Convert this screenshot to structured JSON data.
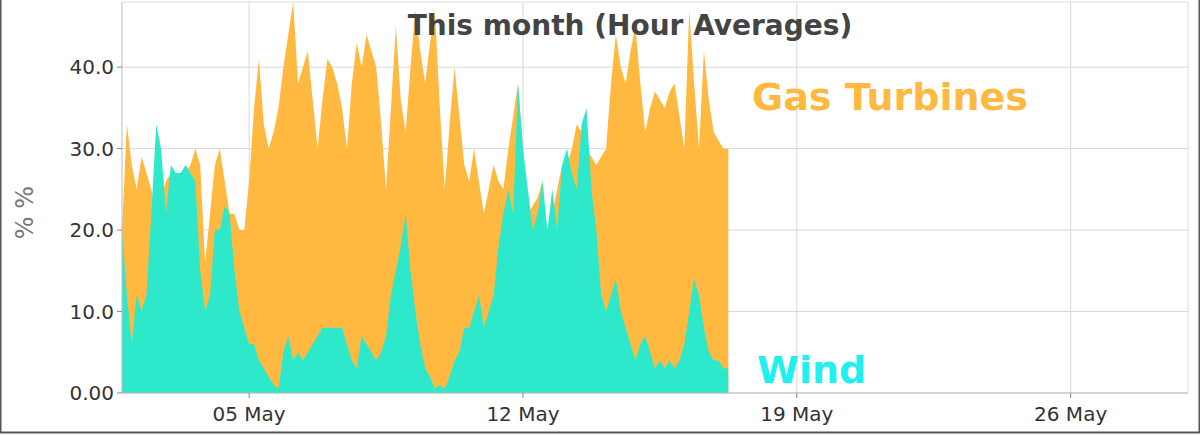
{
  "chart_data": {
    "type": "area",
    "title": "This month (Hour Averages)",
    "y_label": "% %",
    "stacked": false,
    "grid": true,
    "x": [
      1.75,
      1.875,
      2,
      2.125,
      2.25,
      2.375,
      2.5,
      2.625,
      2.75,
      2.875,
      3,
      3.125,
      3.25,
      3.375,
      3.5,
      3.625,
      3.75,
      3.875,
      4,
      4.125,
      4.25,
      4.375,
      4.5,
      4.625,
      4.75,
      4.875,
      5,
      5.125,
      5.25,
      5.375,
      5.5,
      5.625,
      5.75,
      5.875,
      6,
      6.125,
      6.25,
      6.375,
      6.5,
      6.625,
      6.75,
      6.875,
      7,
      7.125,
      7.25,
      7.375,
      7.5,
      7.625,
      7.75,
      7.875,
      8,
      8.125,
      8.25,
      8.375,
      8.5,
      8.625,
      8.75,
      8.875,
      9,
      9.125,
      9.25,
      9.375,
      9.5,
      9.625,
      9.75,
      9.875,
      10,
      10.125,
      10.25,
      10.375,
      10.5,
      10.625,
      10.75,
      10.875,
      11,
      11.125,
      11.25,
      11.375,
      11.5,
      11.625,
      11.75,
      11.875,
      12,
      12.125,
      12.25,
      12.375,
      12.5,
      12.625,
      12.75,
      12.875,
      13,
      13.125,
      13.25,
      13.375,
      13.5,
      13.625,
      13.75,
      13.875,
      14,
      14.125,
      14.25,
      14.375,
      14.5,
      14.625,
      14.75,
      14.875,
      15,
      15.125,
      15.25,
      15.375,
      15.5,
      15.625,
      15.75,
      15.875,
      16,
      16.125,
      16.25,
      16.375,
      16.5,
      16.625,
      16.75,
      16.875,
      17,
      17.125,
      17.25
    ],
    "xlim": [
      1.75,
      29
    ],
    "xticks": [
      {
        "value": 5,
        "label": "05 May"
      },
      {
        "value": 12,
        "label": "12 May"
      },
      {
        "value": 19,
        "label": "19 May"
      },
      {
        "value": 26,
        "label": "26 May"
      }
    ],
    "ylim": [
      0,
      48
    ],
    "yticks": [
      {
        "value": 0,
        "label": "0.00"
      },
      {
        "value": 10,
        "label": "10.0"
      },
      {
        "value": 20,
        "label": "20.0"
      },
      {
        "value": 30,
        "label": "30.0"
      },
      {
        "value": 40,
        "label": "40.0"
      }
    ],
    "series": [
      {
        "name": "Gas Turbines",
        "color": "#ffb940",
        "values": [
          20,
          33,
          28,
          25,
          29,
          27,
          25,
          22,
          24,
          26,
          27,
          27,
          27,
          27,
          28,
          30,
          28,
          16,
          22,
          28,
          30,
          26,
          22,
          22,
          20,
          20,
          26,
          35,
          41,
          33,
          30,
          32,
          35,
          40,
          44,
          48,
          38,
          40,
          42,
          36,
          30,
          36,
          41,
          40,
          38,
          35,
          30,
          38,
          43,
          40,
          44,
          42,
          40,
          33,
          25,
          35,
          45,
          36,
          32,
          40,
          47,
          42,
          38,
          43,
          47,
          35,
          25,
          33,
          40,
          34,
          28,
          26,
          30,
          26,
          22,
          25,
          28,
          26,
          25,
          30,
          34,
          38,
          30,
          22,
          23,
          24,
          26,
          18,
          22,
          25,
          28,
          28,
          30,
          33,
          32,
          30,
          29,
          28,
          29,
          30,
          38,
          44,
          40,
          38,
          42,
          45,
          38,
          32,
          35,
          37,
          36,
          35,
          37,
          38,
          34,
          30,
          47,
          38,
          30,
          42,
          36,
          32,
          31,
          30,
          30
        ]
      },
      {
        "name": "Wind",
        "color": "#2ee8cc",
        "values": [
          20,
          12,
          6,
          12,
          10,
          12,
          22,
          33,
          30,
          22,
          28,
          27,
          27,
          28,
          27,
          26,
          15,
          10,
          12,
          20,
          20,
          23,
          22,
          15,
          10,
          8,
          6,
          6,
          4,
          3,
          2,
          1,
          0.5,
          5,
          7,
          4,
          5,
          4,
          5,
          6,
          7,
          8,
          8,
          8,
          8,
          8,
          6,
          4,
          3,
          7,
          6,
          5,
          4,
          5,
          7,
          12,
          15,
          18,
          22,
          15,
          10,
          6,
          3,
          2,
          0.5,
          1,
          0.5,
          2,
          4,
          5,
          8,
          8,
          10,
          12,
          8,
          10,
          12,
          18,
          22,
          25,
          22,
          38,
          30,
          25,
          20,
          22,
          26,
          20,
          25,
          20,
          28,
          30,
          27,
          25,
          33,
          35,
          25,
          20,
          12,
          10,
          12,
          14,
          10,
          8,
          6,
          4,
          6,
          7,
          5,
          3,
          4,
          3,
          4,
          3,
          4,
          6,
          10,
          14,
          12,
          8,
          5,
          4,
          4,
          3,
          3
        ]
      }
    ]
  }
}
